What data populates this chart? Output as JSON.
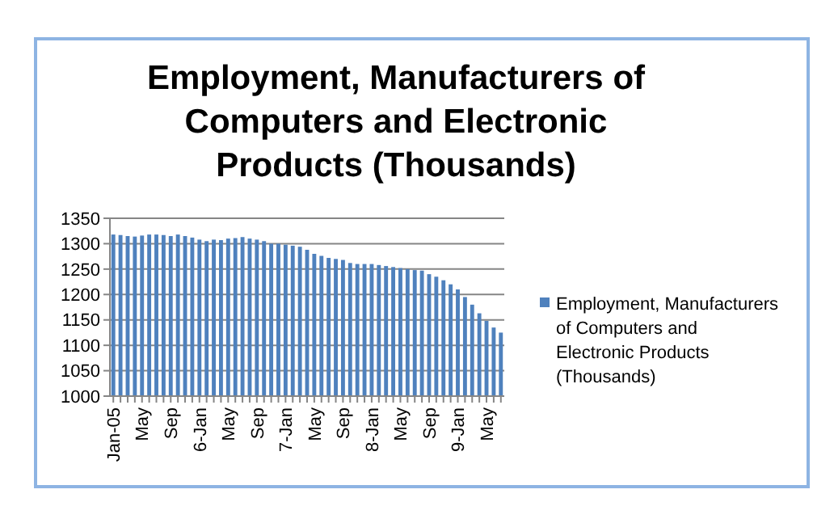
{
  "chart_data": {
    "type": "bar",
    "title": "Employment, Manufacturers of Computers and Electronic Products (Thousands)",
    "categories": [
      "Jan-05",
      null,
      null,
      null,
      "May",
      null,
      null,
      null,
      "Sep",
      null,
      null,
      null,
      "6-Jan",
      null,
      null,
      null,
      "May",
      null,
      null,
      null,
      "Sep",
      null,
      null,
      null,
      "7-Jan",
      null,
      null,
      null,
      "May",
      null,
      null,
      null,
      "Sep",
      null,
      null,
      null,
      "8-Jan",
      null,
      null,
      null,
      "May",
      null,
      null,
      null,
      "Sep",
      null,
      null,
      null,
      "9-Jan",
      null,
      null,
      null,
      "May",
      null,
      null
    ],
    "series": [
      {
        "name": "Employment, Manufacturers of Computers and Electronic Products (Thousands)",
        "color": "#4f81bd",
        "values": [
          1318,
          1317,
          1315,
          1314,
          1316,
          1318,
          1318,
          1317,
          1315,
          1318,
          1315,
          1312,
          1308,
          1305,
          1308,
          1307,
          1310,
          1311,
          1313,
          1310,
          1308,
          1305,
          1300,
          1300,
          1298,
          1296,
          1294,
          1288,
          1280,
          1276,
          1272,
          1270,
          1268,
          1262,
          1260,
          1260,
          1260,
          1258,
          1256,
          1254,
          1252,
          1250,
          1248,
          1247,
          1240,
          1235,
          1228,
          1220,
          1210,
          1195,
          1180,
          1163,
          1148,
          1135,
          1125
        ]
      }
    ],
    "ylim": [
      1000,
      1350
    ],
    "yticks": [
      1000,
      1050,
      1100,
      1150,
      1200,
      1250,
      1300,
      1350
    ],
    "grid": "y",
    "legend": "right"
  }
}
